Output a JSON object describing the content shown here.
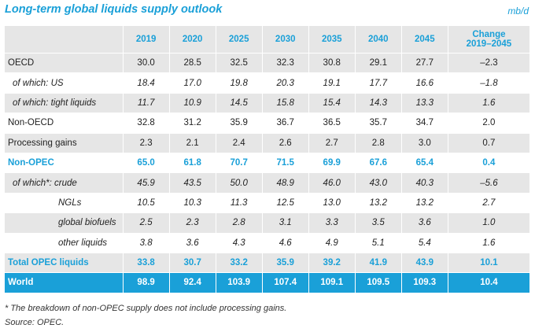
{
  "title": "Long-term global liquids supply outlook",
  "unit": "mb/d",
  "header": {
    "years": [
      "2019",
      "2020",
      "2025",
      "2030",
      "2035",
      "2040",
      "2045"
    ],
    "change_line1": "Change",
    "change_line2": "2019–2045"
  },
  "rows": [
    {
      "label": "OECD",
      "values": [
        "30.0",
        "28.5",
        "32.5",
        "32.3",
        "30.8",
        "29.1",
        "27.7"
      ],
      "change": "–2.3"
    },
    {
      "label": "of which: US",
      "values": [
        "18.4",
        "17.0",
        "19.8",
        "20.3",
        "19.1",
        "17.7",
        "16.6"
      ],
      "change": "–1.8"
    },
    {
      "label": "of which: tight liquids",
      "values": [
        "11.7",
        "10.9",
        "14.5",
        "15.8",
        "15.4",
        "14.3",
        "13.3"
      ],
      "change": "1.6"
    },
    {
      "label": "Non-OECD",
      "values": [
        "32.8",
        "31.2",
        "35.9",
        "36.7",
        "36.5",
        "35.7",
        "34.7"
      ],
      "change": "2.0"
    },
    {
      "label": "Processing gains",
      "values": [
        "2.3",
        "2.1",
        "2.4",
        "2.6",
        "2.7",
        "2.8",
        "3.0"
      ],
      "change": "0.7"
    },
    {
      "label": "Non-OPEC",
      "values": [
        "65.0",
        "61.8",
        "70.7",
        "71.5",
        "69.9",
        "67.6",
        "65.4"
      ],
      "change": "0.4"
    },
    {
      "label": "of which*: crude",
      "values": [
        "45.9",
        "43.5",
        "50.0",
        "48.9",
        "46.0",
        "43.0",
        "40.3"
      ],
      "change": "–5.6"
    },
    {
      "label": "NGLs",
      "values": [
        "10.5",
        "10.3",
        "11.3",
        "12.5",
        "13.0",
        "13.2",
        "13.2"
      ],
      "change": "2.7"
    },
    {
      "label": "global biofuels",
      "values": [
        "2.5",
        "2.3",
        "2.8",
        "3.1",
        "3.3",
        "3.5",
        "3.6"
      ],
      "change": "1.0"
    },
    {
      "label": "other liquids",
      "values": [
        "3.8",
        "3.6",
        "4.3",
        "4.6",
        "4.9",
        "5.1",
        "5.4"
      ],
      "change": "1.6"
    },
    {
      "label": "Total OPEC liquids",
      "values": [
        "33.8",
        "30.7",
        "33.2",
        "35.9",
        "39.2",
        "41.9",
        "43.9"
      ],
      "change": "10.1"
    },
    {
      "label": "World",
      "values": [
        "98.9",
        "92.4",
        "103.9",
        "107.4",
        "109.1",
        "109.5",
        "109.3"
      ],
      "change": "10.4"
    }
  ],
  "footnote": "*   The breakdown of non-OPEC supply does not include processing gains.",
  "source": "Source: OPEC."
}
